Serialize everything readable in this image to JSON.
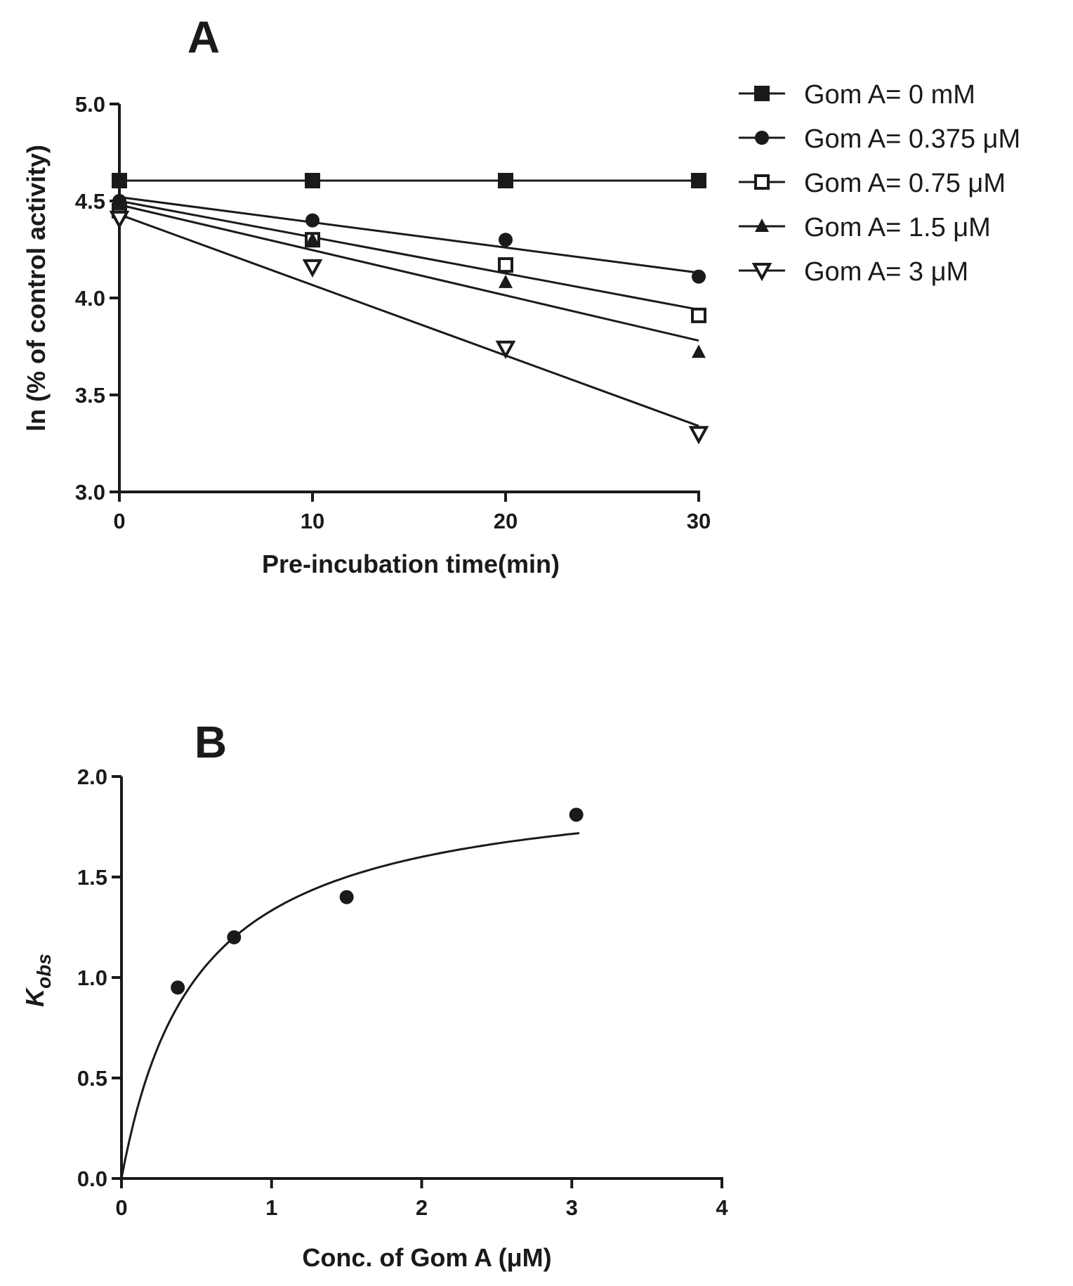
{
  "chart_data": [
    {
      "panel": "A",
      "type": "scatter",
      "title": "A",
      "xlabel": "Pre-incubation time(min)",
      "ylabel": "ln (% of control activity)",
      "xlim": [
        0,
        30
      ],
      "ylim": [
        3.0,
        5.0
      ],
      "xticks": [
        "0",
        "10",
        "20",
        "30"
      ],
      "yticks": [
        "3.0",
        "3.5",
        "4.0",
        "4.5",
        "5.0"
      ],
      "legend_position": "right",
      "series": [
        {
          "name": "Gom A= 0 mM",
          "marker": "square-filled",
          "x": [
            0,
            10,
            20,
            30
          ],
          "y": [
            4.605,
            4.605,
            4.605,
            4.605
          ],
          "fit": [
            [
              0,
              4.605
            ],
            [
              30,
              4.605
            ]
          ]
        },
        {
          "name": "Gom A= 0.375 μM",
          "marker": "circle-filled",
          "x": [
            0,
            10,
            20,
            30
          ],
          "y": [
            4.5,
            4.4,
            4.3,
            4.11
          ],
          "fit": [
            [
              0,
              4.52
            ],
            [
              30,
              4.13
            ]
          ]
        },
        {
          "name": "Gom A= 0.75 μM",
          "marker": "square-open",
          "x": [
            0,
            10,
            20,
            30
          ],
          "y": [
            4.45,
            4.3,
            4.17,
            3.91
          ],
          "fit": [
            [
              0,
              4.5
            ],
            [
              30,
              3.94
            ]
          ]
        },
        {
          "name": "Gom A= 1.5 μM",
          "marker": "triangle-up-filled",
          "x": [
            0,
            10,
            20,
            30
          ],
          "y": [
            4.48,
            4.3,
            4.08,
            3.72
          ],
          "fit": [
            [
              0,
              4.48
            ],
            [
              30,
              3.78
            ]
          ]
        },
        {
          "name": "Gom A= 3 μM",
          "marker": "triangle-down-open",
          "x": [
            0,
            10,
            20,
            30
          ],
          "y": [
            4.41,
            4.16,
            3.74,
            3.3
          ],
          "fit": [
            [
              0,
              4.43
            ],
            [
              30,
              3.34
            ]
          ]
        }
      ]
    },
    {
      "panel": "B",
      "type": "scatter",
      "title": "B",
      "xlabel": "Conc. of Gom A (μM)",
      "ylabel_main": "K",
      "ylabel_sub": "obs",
      "xlim": [
        0,
        4
      ],
      "ylim": [
        0.0,
        2.0
      ],
      "xticks": [
        "0",
        "1",
        "2",
        "3",
        "4"
      ],
      "yticks": [
        "0.0",
        "0.5",
        "1.0",
        "1.5",
        "2.0"
      ],
      "series": [
        {
          "name": "Kobs",
          "marker": "circle-filled",
          "x": [
            0.375,
            0.75,
            1.5,
            3.03
          ],
          "y": [
            0.95,
            1.2,
            1.4,
            1.81
          ]
        }
      ],
      "fit_curve": {
        "model": "hyperbolic",
        "kmax": 2.0,
        "ki": 0.5,
        "x_range": [
          0,
          3.05
        ]
      }
    }
  ]
}
